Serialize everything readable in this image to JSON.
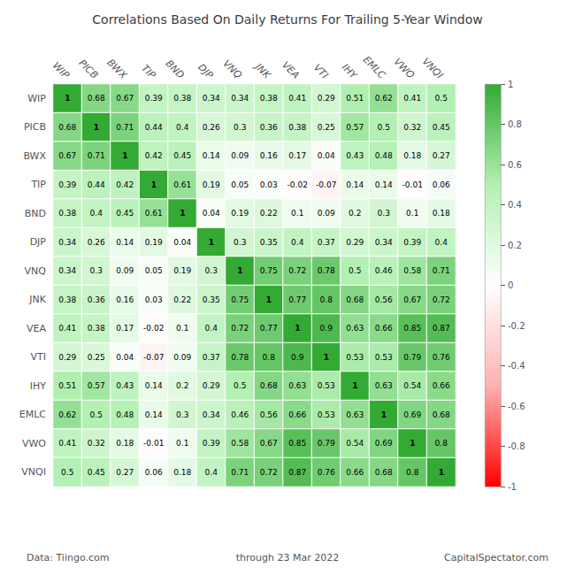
{
  "chart_data": {
    "type": "heatmap",
    "title": "Correlations Based On Daily Returns For Trailing 5-Year Window",
    "categories": [
      "WIP",
      "PICB",
      "BWX",
      "TIP",
      "BND",
      "DJP",
      "VNQ",
      "JNK",
      "VEA",
      "VTI",
      "IHY",
      "EMLC",
      "VWO",
      "VNQI"
    ],
    "matrix": [
      [
        1,
        0.68,
        0.67,
        0.39,
        0.38,
        0.34,
        0.34,
        0.38,
        0.41,
        0.29,
        0.51,
        0.62,
        0.41,
        0.5
      ],
      [
        0.68,
        1,
        0.71,
        0.44,
        0.4,
        0.26,
        0.3,
        0.36,
        0.38,
        0.25,
        0.57,
        0.5,
        0.32,
        0.45
      ],
      [
        0.67,
        0.71,
        1,
        0.42,
        0.45,
        0.14,
        0.09,
        0.16,
        0.17,
        0.04,
        0.43,
        0.48,
        0.18,
        0.27
      ],
      [
        0.39,
        0.44,
        0.42,
        1,
        0.61,
        0.19,
        0.05,
        0.03,
        -0.02,
        -0.07,
        0.14,
        0.14,
        -0.01,
        0.06
      ],
      [
        0.38,
        0.4,
        0.45,
        0.61,
        1,
        0.04,
        0.19,
        0.22,
        0.1,
        0.09,
        0.2,
        0.3,
        0.1,
        0.18
      ],
      [
        0.34,
        0.26,
        0.14,
        0.19,
        0.04,
        1,
        0.3,
        0.35,
        0.4,
        0.37,
        0.29,
        0.34,
        0.39,
        0.4
      ],
      [
        0.34,
        0.3,
        0.09,
        0.05,
        0.19,
        0.3,
        1,
        0.75,
        0.72,
        0.78,
        0.5,
        0.46,
        0.58,
        0.71
      ],
      [
        0.38,
        0.36,
        0.16,
        0.03,
        0.22,
        0.35,
        0.75,
        1,
        0.77,
        0.8,
        0.68,
        0.56,
        0.67,
        0.72
      ],
      [
        0.41,
        0.38,
        0.17,
        -0.02,
        0.1,
        0.4,
        0.72,
        0.77,
        1,
        0.9,
        0.63,
        0.66,
        0.85,
        0.87
      ],
      [
        0.29,
        0.25,
        0.04,
        -0.07,
        0.09,
        0.37,
        0.78,
        0.8,
        0.9,
        1,
        0.53,
        0.53,
        0.79,
        0.76
      ],
      [
        0.51,
        0.57,
        0.43,
        0.14,
        0.2,
        0.29,
        0.5,
        0.68,
        0.63,
        0.53,
        1,
        0.63,
        0.54,
        0.66
      ],
      [
        0.62,
        0.5,
        0.48,
        0.14,
        0.3,
        0.34,
        0.46,
        0.56,
        0.66,
        0.53,
        0.63,
        1,
        0.69,
        0.68
      ],
      [
        0.41,
        0.32,
        0.18,
        -0.01,
        0.1,
        0.39,
        0.58,
        0.67,
        0.85,
        0.79,
        0.54,
        0.69,
        1,
        0.8
      ],
      [
        0.5,
        0.45,
        0.27,
        0.06,
        0.18,
        0.4,
        0.71,
        0.72,
        0.87,
        0.76,
        0.66,
        0.68,
        0.8,
        1
      ]
    ],
    "colorbar_range": [
      -1,
      1
    ],
    "colorbar_ticks": [
      1,
      0.8,
      0.6,
      0.4,
      0.2,
      0,
      -0.2,
      -0.4,
      -0.6,
      -0.8,
      -1
    ],
    "colorbar_colors": [
      "#ff0000",
      "#ffb0b0",
      "#ffffff",
      "#b3f0b3",
      "#33aa33"
    ],
    "data_labels": true,
    "annotations": [
      "Data: Tiingo.com",
      "through 23 Mar 2022",
      "CapitalSpectator.com"
    ]
  }
}
